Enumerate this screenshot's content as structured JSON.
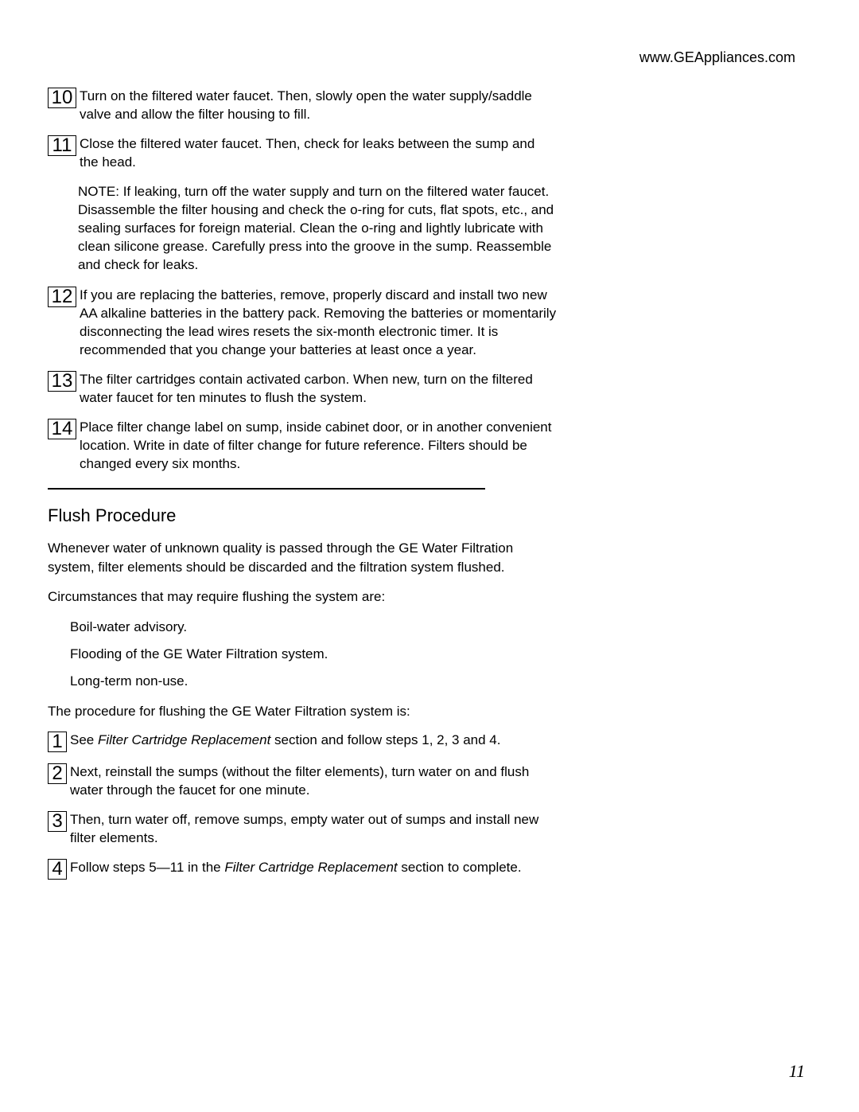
{
  "url": "www.GEAppliances.com",
  "steps_part1": [
    {
      "num": "10",
      "text": "Turn on the filtered water faucet. Then, slowly open the water supply/saddle valve and allow the filter housing to fill."
    },
    {
      "num": "11",
      "text": "Close the filtered water faucet. Then, check for leaks between the sump and the head."
    }
  ],
  "note": {
    "label": "NOTE:",
    "text": "If leaking, turn off the water supply and turn on the filtered   water faucet. Disassemble the filter housing and check the o-ring for cuts, flat spots, etc., and sealing surfaces for foreign material. Clean the o-ring and lightly lubricate with clean silicone grease. Carefully press into the groove in the sump. Reassemble and check for leaks."
  },
  "steps_part2": [
    {
      "num": "12",
      "text": "If you are replacing the batteries, remove, properly discard and install two new AA alkaline batteries in the battery pack. Removing the batteries or momentarily disconnecting the lead wires resets the six-month electronic timer. It is recommended that you change your batteries at least once a year."
    },
    {
      "num": "13",
      "text": "The filter cartridges contain activated carbon. When new, turn on the filtered water faucet for ten minutes to flush the system."
    },
    {
      "num": "14",
      "text": "Place filter change label on sump, inside cabinet door, or in another convenient location. Write in date of filter change for future reference. Filters should be changed every six months."
    }
  ],
  "flush": {
    "heading": "Flush Procedure",
    "intro": "Whenever water of unknown quality is passed through the GE Water Filtration system, filter elements should be discarded and the filtration system flushed.",
    "circ_label": "Circumstances that may require flushing the system are:",
    "bullets": [
      "Boil-water advisory.",
      "Flooding of the GE Water Filtration system.",
      "Long-term non-use."
    ],
    "proc_label": "The procedure for flushing the GE Water Filtration system is:",
    "steps": [
      {
        "num": "1",
        "pre": "See ",
        "italic": "Filter Cartridge Replacement",
        "post": " section and follow steps 1, 2, 3 and 4."
      },
      {
        "num": "2",
        "pre": "Next, reinstall the sumps (without the filter elements), turn water on and flush water through the faucet for one minute.",
        "italic": "",
        "post": ""
      },
      {
        "num": "3",
        "pre": "Then, turn water off, remove sumps, empty water out of sumps and install new filter elements.",
        "italic": "",
        "post": ""
      },
      {
        "num": "4",
        "pre": "Follow steps 5—11 in the ",
        "italic": "Filter Cartridge Replacement",
        "post": " section to complete."
      }
    ]
  },
  "page_number": "11"
}
